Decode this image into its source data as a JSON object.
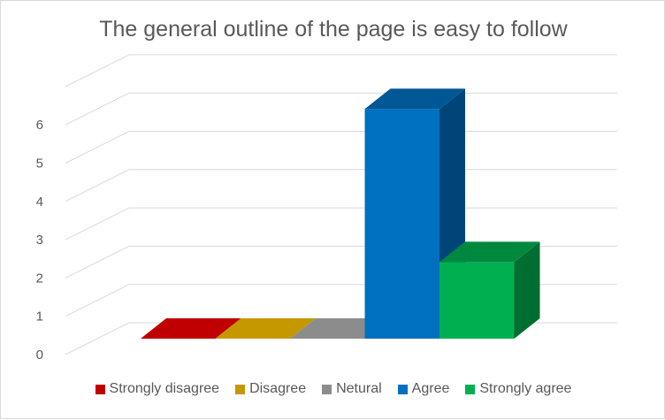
{
  "chart_data": {
    "type": "bar",
    "title": "The general outline of the page is easy to follow",
    "categories": [
      "Strongly disagree",
      "Disagree",
      "Netural",
      "Agree",
      "Strongly agree"
    ],
    "values": [
      0,
      0,
      0,
      6,
      2
    ],
    "colors": [
      "#c00000",
      "#c59800",
      "#8c8c8c",
      "#0070c0",
      "#00b050"
    ],
    "ylim": [
      0,
      6
    ],
    "yticks": [
      0,
      1,
      2,
      3,
      4,
      5,
      6
    ],
    "legend_position": "bottom",
    "grid": true,
    "style": "3d"
  }
}
